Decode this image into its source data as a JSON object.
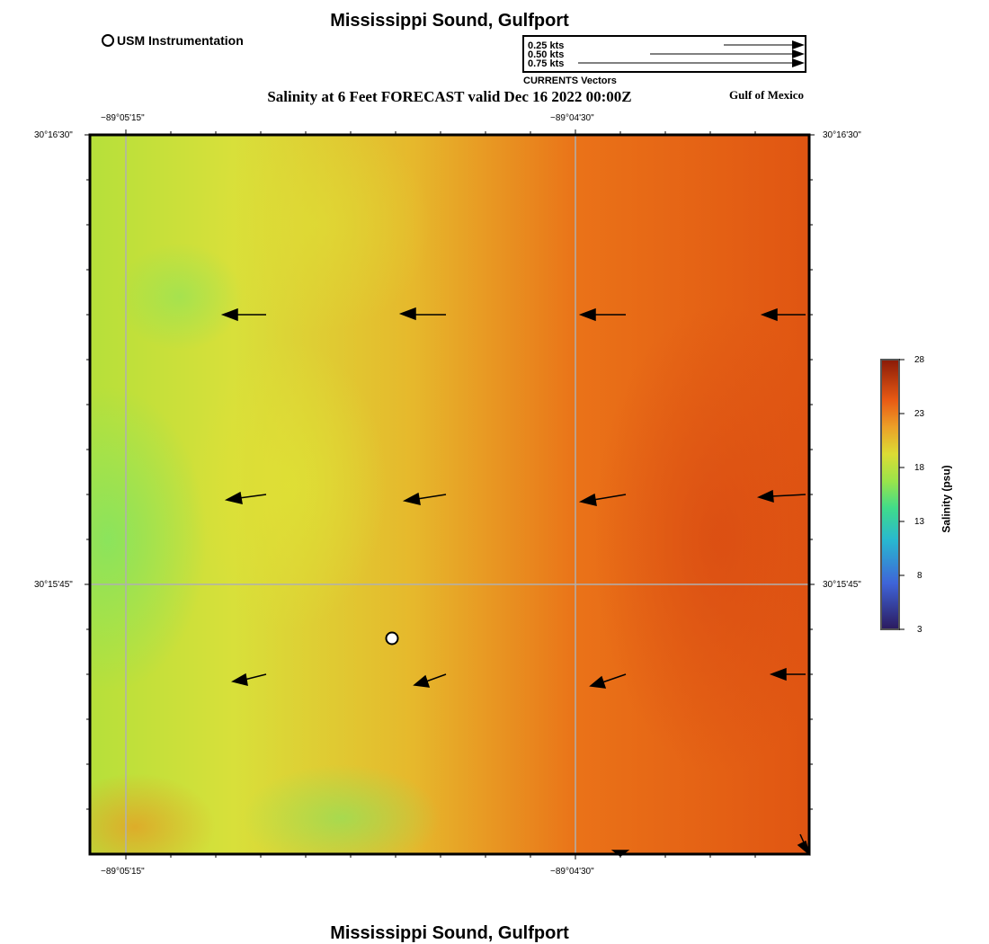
{
  "header": {
    "title": "Mississippi Sound, Gulfport",
    "legend_usm": "USM Instrumentation",
    "subtitle": "Salinity at 6 Feet FORECAST valid Dec 16 2022 00:00Z",
    "region": "Gulf of Mexico"
  },
  "vector_legend": {
    "rows": [
      "0.25 kts",
      "0.50 kts",
      "0.75 kts"
    ],
    "caption": "CURRENTS Vectors"
  },
  "map": {
    "top_lon_labels": [
      "−89°05'15\"",
      "−89°04'30\""
    ],
    "bottom_lon_labels": [
      "−89°05'15\"",
      "−89°04'30\""
    ],
    "left_lat_labels": [
      "30°16'30\"",
      "30°15'45\""
    ],
    "right_lat_labels": [
      "30°16'30\"",
      "30°15'45\""
    ],
    "colors": {
      "low": "#2b1a5e",
      "mid": "#d8e03a",
      "high": "#e05a10",
      "grid": "#b0b0b0"
    }
  },
  "colorbar": {
    "label": "Salinity (psu)",
    "ticks": [
      "28",
      "23",
      "18",
      "13",
      "8",
      "3"
    ]
  },
  "footer": {
    "title": "Mississippi Sound, Gulfport"
  }
}
